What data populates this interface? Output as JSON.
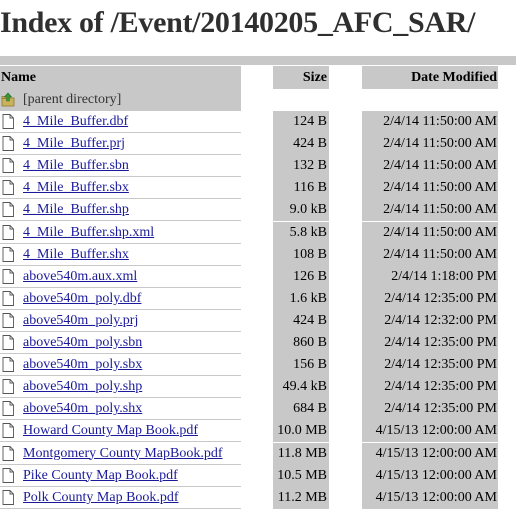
{
  "page": {
    "title": "Index of /Event/20140205_AFC_SAR/"
  },
  "table": {
    "headers": {
      "name": "Name",
      "size": "Size",
      "date": "Date Modified"
    },
    "parent": {
      "label": "[parent directory]",
      "icon": "folder-up-icon"
    },
    "rows": [
      {
        "name": "4_Mile_Buffer.dbf",
        "size": "124 B",
        "date": "2/4/14 11:50:00 AM"
      },
      {
        "name": "4_Mile_Buffer.prj",
        "size": "424 B",
        "date": "2/4/14 11:50:00 AM"
      },
      {
        "name": "4_Mile_Buffer.sbn",
        "size": "132 B",
        "date": "2/4/14 11:50:00 AM"
      },
      {
        "name": "4_Mile_Buffer.sbx",
        "size": "116 B",
        "date": "2/4/14 11:50:00 AM"
      },
      {
        "name": "4_Mile_Buffer.shp",
        "size": "9.0 kB",
        "date": "2/4/14 11:50:00 AM"
      },
      {
        "name": "4_Mile_Buffer.shp.xml",
        "size": "5.8 kB",
        "date": "2/4/14 11:50:00 AM"
      },
      {
        "name": "4_Mile_Buffer.shx",
        "size": "108 B",
        "date": "2/4/14 11:50:00 AM"
      },
      {
        "name": "above540m.aux.xml",
        "size": "126 B",
        "date": "2/4/14 1:18:00 PM"
      },
      {
        "name": "above540m_poly.dbf",
        "size": "1.6 kB",
        "date": "2/4/14 12:35:00 PM"
      },
      {
        "name": "above540m_poly.prj",
        "size": "424 B",
        "date": "2/4/14 12:32:00 PM"
      },
      {
        "name": "above540m_poly.sbn",
        "size": "860 B",
        "date": "2/4/14 12:35:00 PM"
      },
      {
        "name": "above540m_poly.sbx",
        "size": "156 B",
        "date": "2/4/14 12:35:00 PM"
      },
      {
        "name": "above540m_poly.shp",
        "size": "49.4 kB",
        "date": "2/4/14 12:35:00 PM"
      },
      {
        "name": "above540m_poly.shx",
        "size": "684 B",
        "date": "2/4/14 12:35:00 PM"
      },
      {
        "name": "Howard County Map Book.pdf",
        "size": "10.0 MB",
        "date": "4/15/13 12:00:00 AM"
      },
      {
        "name": "Montgomery County MapBook.pdf",
        "size": "11.8 MB",
        "date": "4/15/13 12:00:00 AM"
      },
      {
        "name": "Pike County Map Book.pdf",
        "size": "10.5 MB",
        "date": "4/15/13 12:00:00 AM"
      },
      {
        "name": "Polk County Map Book.pdf",
        "size": "11.2 MB",
        "date": "4/15/13 12:00:00 AM"
      }
    ]
  }
}
